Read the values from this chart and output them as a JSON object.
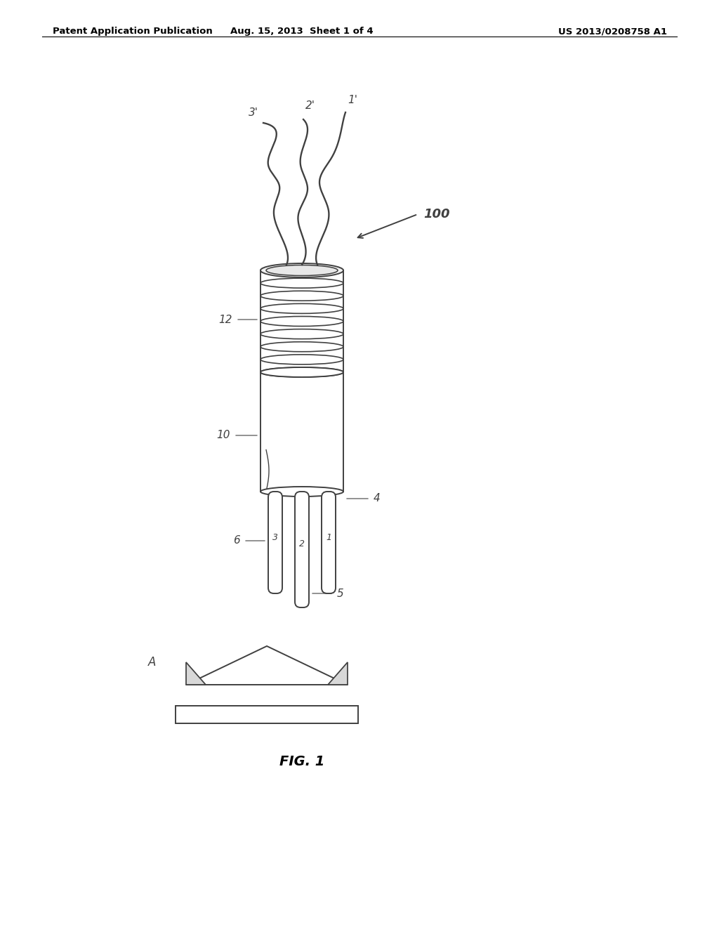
{
  "bg_color": "#ffffff",
  "line_color": "#404040",
  "header_left": "Patent Application Publication",
  "header_center": "Aug. 15, 2013  Sheet 1 of 4",
  "header_right": "US 2013/0208758 A1",
  "fig_label": "FIG. 1",
  "label_100": "100",
  "label_12": "12",
  "label_10": "10",
  "label_4": "4",
  "label_6": "6",
  "label_5": "5",
  "label_1prime": "1'",
  "label_2prime": "2'",
  "label_3prime": "3'",
  "label_1pin": "1",
  "label_2pin": "2",
  "label_3pin": "3",
  "label_A": "A"
}
